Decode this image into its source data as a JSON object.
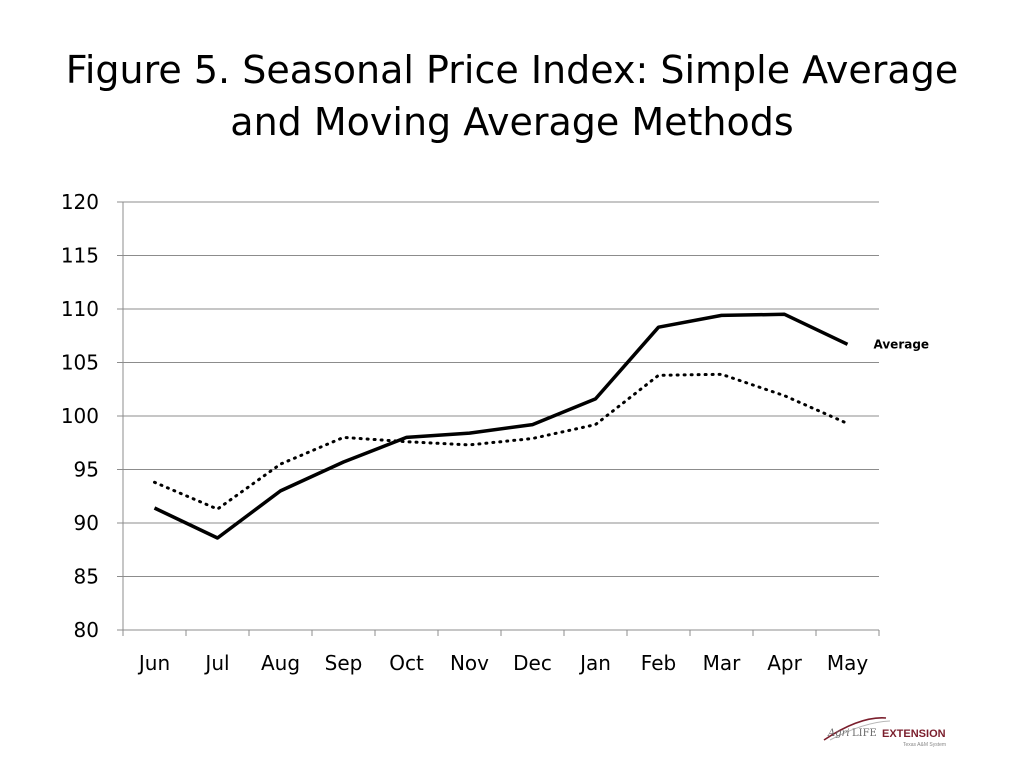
{
  "title": {
    "line1": "Figure 5. Seasonal Price Index: Simple Average",
    "line2": "and Moving Average Methods"
  },
  "chart_data": {
    "type": "line",
    "title": "Figure 5. Seasonal Price Index: Simple Average and Moving Average Methods",
    "xlabel": "",
    "ylabel": "",
    "categories": [
      "Jun",
      "Jul",
      "Aug",
      "Sep",
      "Oct",
      "Nov",
      "Dec",
      "Jan",
      "Feb",
      "Mar",
      "Apr",
      "May"
    ],
    "ylim": [
      80,
      120
    ],
    "yticks": [
      80,
      85,
      90,
      95,
      100,
      105,
      110,
      115,
      120
    ],
    "grid": true,
    "series": [
      {
        "name": "Average",
        "style": "solid",
        "color": "#000000",
        "values": [
          91.4,
          88.6,
          93.0,
          95.7,
          98.0,
          98.4,
          99.2,
          101.6,
          108.3,
          109.4,
          109.5,
          106.7
        ]
      },
      {
        "name": "",
        "style": "dotted",
        "color": "#000000",
        "values": [
          93.8,
          91.3,
          95.5,
          98.0,
          97.6,
          97.3,
          97.9,
          99.2,
          103.8,
          103.9,
          101.9,
          99.3
        ]
      }
    ]
  },
  "logo": {
    "agri": "Agri",
    "life": "LIFE",
    "extension": "EXTENSION",
    "subtitle": "Texas A&M System"
  },
  "colors": {
    "grid": "#8c8c8c",
    "logo_accent": "#7a1e2c"
  }
}
